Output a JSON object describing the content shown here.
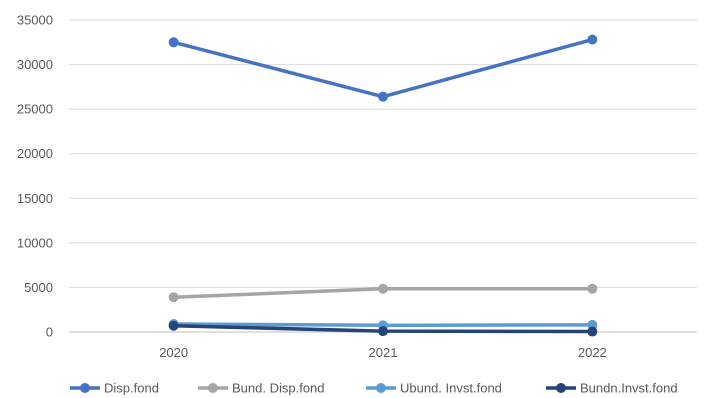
{
  "chart_data": {
    "type": "line",
    "title": "",
    "xlabel": "",
    "ylabel": "",
    "categories": [
      "2020",
      "2021",
      "2022"
    ],
    "ylim": [
      0,
      35000
    ],
    "yticks": [
      0,
      5000,
      10000,
      15000,
      20000,
      25000,
      30000,
      35000
    ],
    "grid": true,
    "legend_position": "bottom",
    "series": [
      {
        "name": "Disp.fond",
        "color": "#4472c4",
        "values": [
          32500,
          26400,
          32800
        ]
      },
      {
        "name": "Bund. Disp.fond",
        "color": "#a5a5a5",
        "values": [
          3900,
          4850,
          4850
        ]
      },
      {
        "name": "Ubund. Invst.fond",
        "color": "#5b9bd5",
        "values": [
          900,
          750,
          800
        ]
      },
      {
        "name": "Bundn.Invst.fond",
        "color": "#264478",
        "values": [
          700,
          100,
          50
        ]
      }
    ]
  }
}
